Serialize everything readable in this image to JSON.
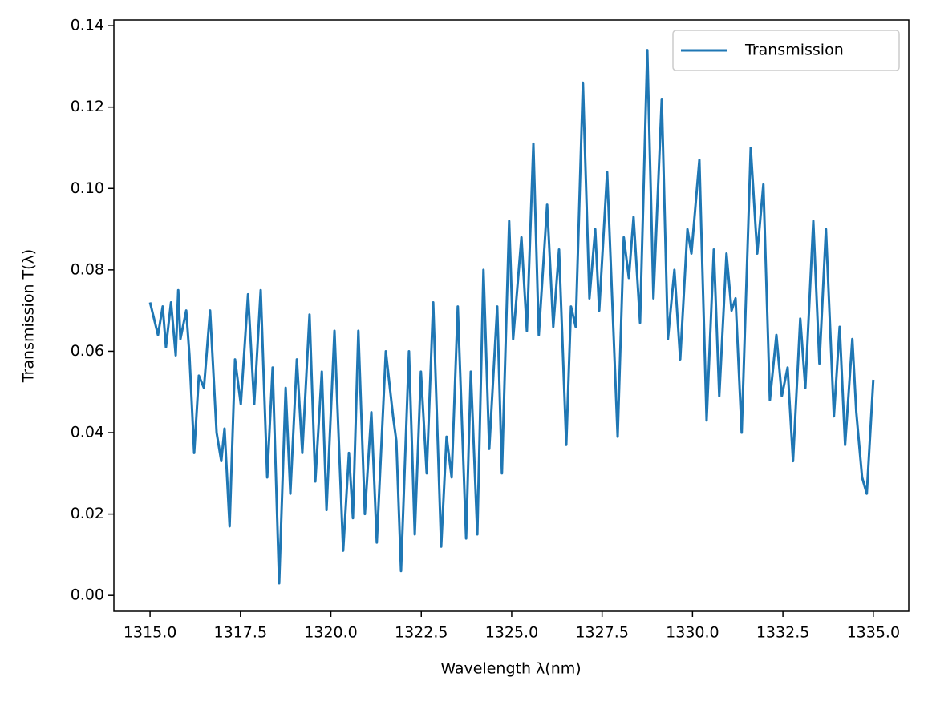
{
  "chart_data": {
    "type": "line",
    "xlabel": "Wavelength λ(nm)",
    "ylabel": "Transmission T(λ)",
    "x": [
      1315.0,
      1315.11,
      1315.22,
      1315.35,
      1315.44,
      1315.58,
      1315.71,
      1315.78,
      1315.84,
      1316.0,
      1316.09,
      1316.22,
      1316.35,
      1316.49,
      1316.66,
      1316.84,
      1316.97,
      1317.06,
      1317.2,
      1317.35,
      1317.51,
      1317.71,
      1317.88,
      1318.06,
      1318.24,
      1318.39,
      1318.57,
      1318.75,
      1318.88,
      1319.06,
      1319.21,
      1319.41,
      1319.57,
      1319.75,
      1319.88,
      1320.1,
      1320.34,
      1320.5,
      1320.61,
      1320.76,
      1320.94,
      1321.12,
      1321.27,
      1321.52,
      1321.72,
      1321.81,
      1321.94,
      1322.16,
      1322.32,
      1322.49,
      1322.65,
      1322.83,
      1323.05,
      1323.2,
      1323.34,
      1323.51,
      1323.74,
      1323.87,
      1324.05,
      1324.22,
      1324.38,
      1324.6,
      1324.73,
      1324.93,
      1325.04,
      1325.27,
      1325.42,
      1325.6,
      1325.75,
      1325.98,
      1326.15,
      1326.31,
      1326.51,
      1326.64,
      1326.77,
      1326.97,
      1327.15,
      1327.31,
      1327.42,
      1327.64,
      1327.93,
      1328.1,
      1328.24,
      1328.37,
      1328.55,
      1328.75,
      1328.92,
      1329.15,
      1329.32,
      1329.5,
      1329.66,
      1329.86,
      1329.97,
      1330.19,
      1330.39,
      1330.59,
      1330.74,
      1330.94,
      1331.08,
      1331.19,
      1331.36,
      1331.61,
      1331.79,
      1331.96,
      1332.14,
      1332.32,
      1332.47,
      1332.63,
      1332.78,
      1332.98,
      1333.12,
      1333.34,
      1333.51,
      1333.69,
      1333.91,
      1334.07,
      1334.22,
      1334.42,
      1334.53,
      1334.69,
      1334.82,
      1335.0
    ],
    "series": [
      {
        "name": "Transmission",
        "color": "#1f77b4",
        "values": [
          0.072,
          0.068,
          0.064,
          0.071,
          0.061,
          0.072,
          0.059,
          0.075,
          0.063,
          0.07,
          0.059,
          0.035,
          0.054,
          0.051,
          0.07,
          0.04,
          0.033,
          0.041,
          0.017,
          0.058,
          0.047,
          0.074,
          0.047,
          0.075,
          0.029,
          0.056,
          0.003,
          0.051,
          0.025,
          0.058,
          0.035,
          0.069,
          0.028,
          0.055,
          0.021,
          0.065,
          0.011,
          0.035,
          0.019,
          0.065,
          0.02,
          0.045,
          0.013,
          0.06,
          0.044,
          0.038,
          0.006,
          0.06,
          0.015,
          0.055,
          0.03,
          0.072,
          0.012,
          0.039,
          0.029,
          0.071,
          0.014,
          0.055,
          0.015,
          0.08,
          0.036,
          0.071,
          0.03,
          0.092,
          0.063,
          0.088,
          0.065,
          0.111,
          0.064,
          0.096,
          0.066,
          0.085,
          0.037,
          0.071,
          0.066,
          0.126,
          0.073,
          0.09,
          0.07,
          0.104,
          0.039,
          0.088,
          0.078,
          0.093,
          0.067,
          0.134,
          0.073,
          0.122,
          0.063,
          0.08,
          0.058,
          0.09,
          0.084,
          0.107,
          0.043,
          0.085,
          0.049,
          0.084,
          0.07,
          0.073,
          0.04,
          0.11,
          0.084,
          0.101,
          0.048,
          0.064,
          0.049,
          0.056,
          0.033,
          0.068,
          0.051,
          0.092,
          0.057,
          0.09,
          0.044,
          0.066,
          0.037,
          0.063,
          0.045,
          0.029,
          0.025,
          0.053
        ]
      }
    ],
    "xlim": [
      1314.0,
      1335.98
    ],
    "ylim": [
      -0.0039,
      0.1414
    ],
    "xticks": [
      {
        "value": 1315,
        "label": "1315.0"
      },
      {
        "value": 1317.5,
        "label": "1317.5"
      },
      {
        "value": 1320,
        "label": "1320.0"
      },
      {
        "value": 1322.5,
        "label": "1322.5"
      },
      {
        "value": 1325,
        "label": "1325.0"
      },
      {
        "value": 1327.5,
        "label": "1327.5"
      },
      {
        "value": 1330,
        "label": "1330.0"
      },
      {
        "value": 1332.5,
        "label": "1332.5"
      },
      {
        "value": 1335,
        "label": "1335.0"
      }
    ],
    "yticks": [
      {
        "value": 0,
        "label": "0.00"
      },
      {
        "value": 0.02,
        "label": "0.02"
      },
      {
        "value": 0.04,
        "label": "0.04"
      },
      {
        "value": 0.06,
        "label": "0.06"
      },
      {
        "value": 0.08,
        "label": "0.08"
      },
      {
        "value": 0.1,
        "label": "0.10"
      },
      {
        "value": 0.12,
        "label": "0.12"
      },
      {
        "value": 0.14,
        "label": "0.14"
      }
    ],
    "grid": false,
    "legend": "upper right"
  }
}
